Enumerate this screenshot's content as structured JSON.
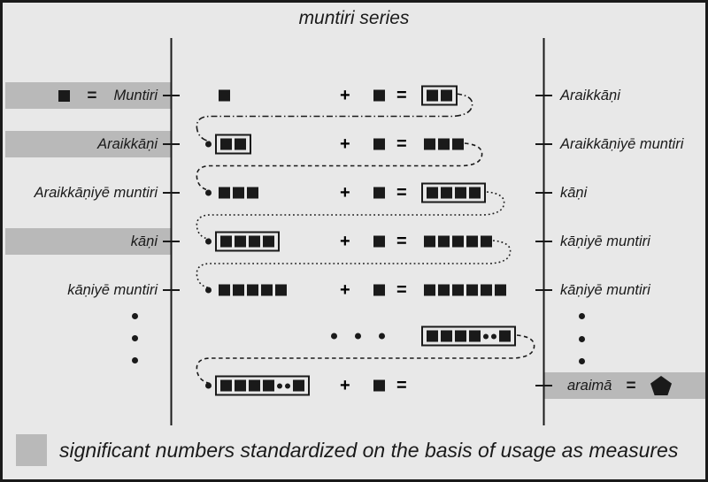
{
  "title": "muntiri series",
  "colors": {
    "background": "#e8e8e8",
    "highlight": "#b9b9b9",
    "ink": "#1a1a1a"
  },
  "left_column": {
    "rows": [
      {
        "label": "Muntiri",
        "highlighted": true,
        "prefix_square": true,
        "equals": "="
      },
      {
        "label": "Araikkāṇi",
        "highlighted": true
      },
      {
        "label": "Araikkāṇiyē muntiri",
        "highlighted": false
      },
      {
        "label": "kāṇi",
        "highlighted": true
      },
      {
        "label": "kāṇiyē muntiri",
        "highlighted": false
      }
    ]
  },
  "right_column": {
    "rows": [
      {
        "label": "Araikkāṇi"
      },
      {
        "label": "Araikkāṇiyē muntiri"
      },
      {
        "label": "kāṇi"
      },
      {
        "label": "kāṇiyē muntiri"
      },
      {
        "label": "kāṇiyē muntiri"
      }
    ],
    "araima": {
      "label": "araimā",
      "equals": "=",
      "symbol": "black-pentagon",
      "highlighted": true
    }
  },
  "equations": [
    {
      "operand": {
        "dot": false,
        "boxed": false,
        "cells": [
          "sq"
        ]
      },
      "plus": "+",
      "unit": "sq",
      "equals": "=",
      "result": {
        "boxed": true,
        "cells": [
          "sq",
          "sq"
        ]
      }
    },
    {
      "operand": {
        "dot": true,
        "boxed": true,
        "cells": [
          "sq",
          "sq"
        ]
      },
      "plus": "+",
      "unit": "sq",
      "equals": "=",
      "result": {
        "boxed": false,
        "cells": [
          "sq",
          "sq",
          "sq"
        ]
      }
    },
    {
      "operand": {
        "dot": true,
        "boxed": false,
        "cells": [
          "sq",
          "sq",
          "sq"
        ]
      },
      "plus": "+",
      "unit": "sq",
      "equals": "=",
      "result": {
        "boxed": true,
        "cells": [
          "sq",
          "sq",
          "sq",
          "sq"
        ]
      }
    },
    {
      "operand": {
        "dot": true,
        "boxed": true,
        "cells": [
          "sq",
          "sq",
          "sq",
          "sq"
        ]
      },
      "plus": "+",
      "unit": "sq",
      "equals": "=",
      "result": {
        "boxed": false,
        "cells": [
          "sq",
          "sq",
          "sq",
          "sq",
          "sq"
        ]
      }
    },
    {
      "operand": {
        "dot": true,
        "boxed": false,
        "cells": [
          "sq",
          "sq",
          "sq",
          "sq",
          "sq"
        ]
      },
      "plus": "+",
      "unit": "sq",
      "equals": "=",
      "result": {
        "boxed": false,
        "cells": [
          "sq",
          "sq",
          "sq",
          "sq",
          "sq",
          "sq"
        ]
      }
    },
    {
      "type": "ellipsis",
      "operand": {
        "dot": false,
        "boxed": true,
        "cells": [
          "sq",
          "sq",
          "sq",
          "sq",
          "dot",
          "dot",
          "sq"
        ]
      }
    },
    {
      "operand": {
        "dot": true,
        "boxed": true,
        "cells": [
          "sq",
          "sq",
          "sq",
          "sq",
          "dot",
          "dot",
          "sq"
        ]
      },
      "plus": "+",
      "unit": "sq",
      "equals": "=",
      "result": null
    }
  ],
  "legend": {
    "text": "significant numbers standardized on the basis of usage as measures"
  }
}
